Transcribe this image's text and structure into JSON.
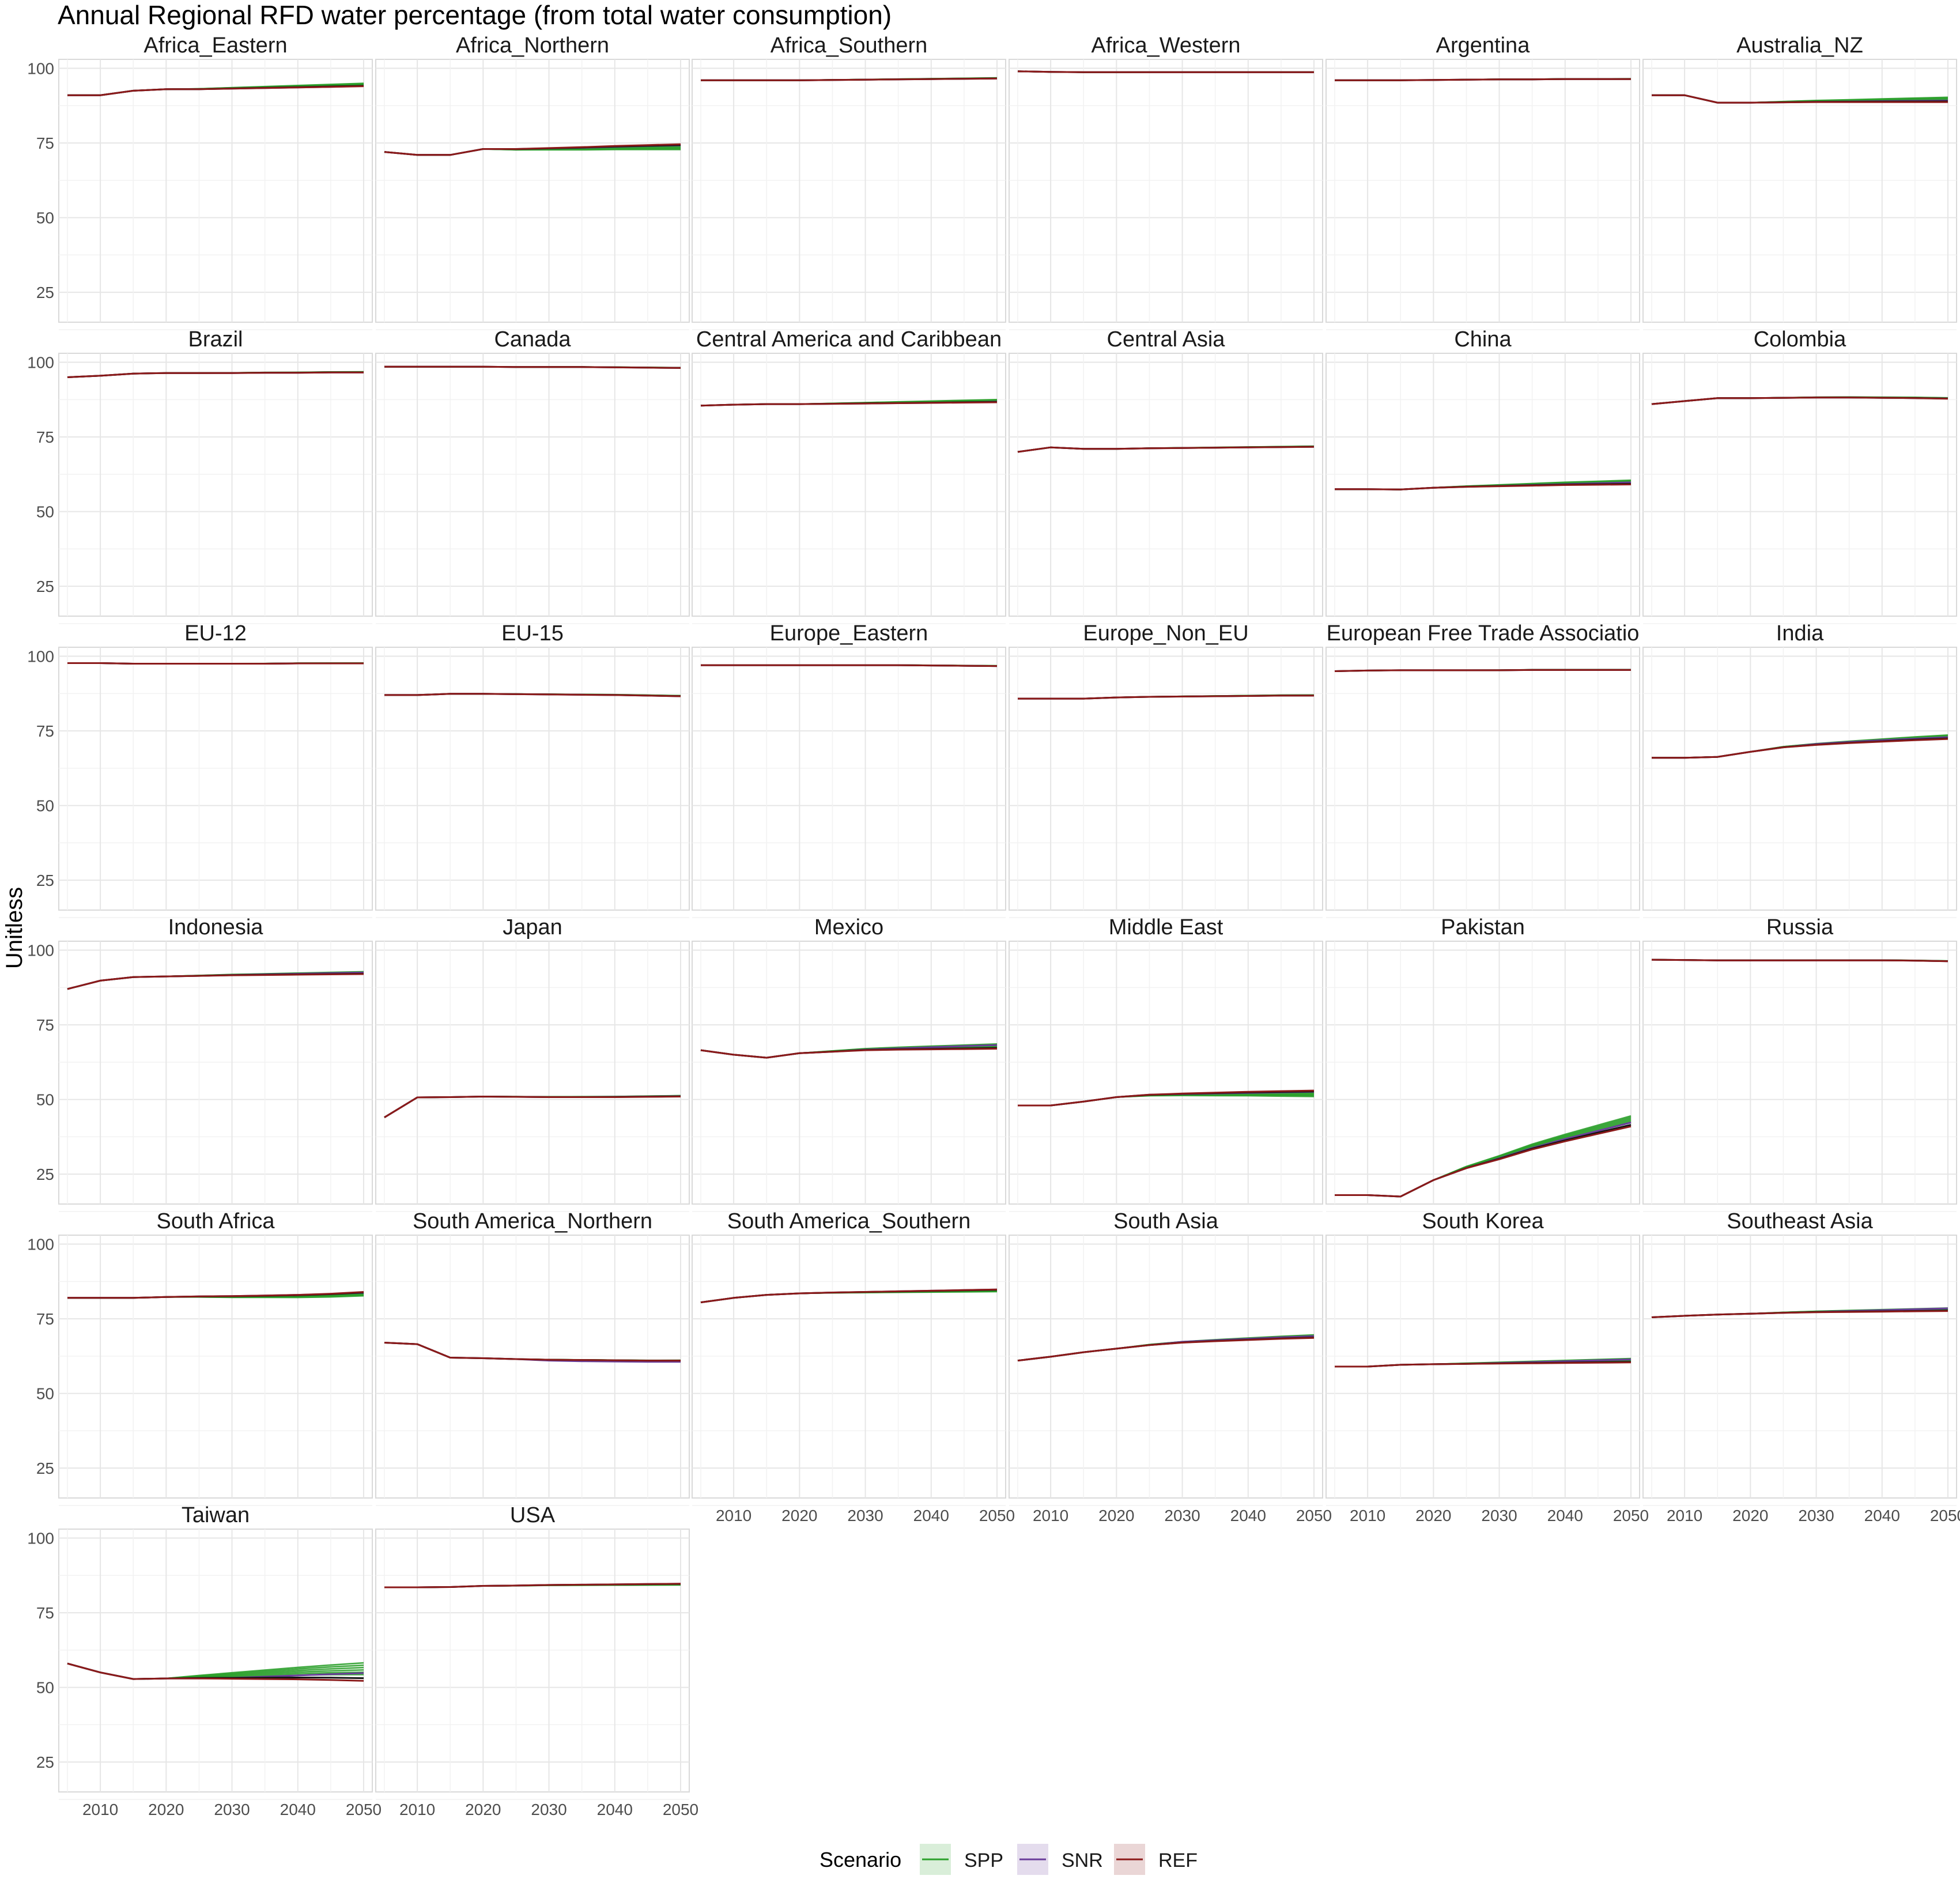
{
  "chart_data": {
    "type": "line",
    "title": "Annual Regional RFD water percentage (from total water consumption)",
    "xlabel": "",
    "ylabel": "Unitless",
    "x_ticks": [
      2010,
      2020,
      2030,
      2040,
      2050
    ],
    "y_ticks": [
      25,
      50,
      75,
      100
    ],
    "xlim": [
      2005,
      2050
    ],
    "ylim": [
      15,
      103
    ],
    "grid": true,
    "legend": {
      "title": "Scenario",
      "position": "bottom",
      "entries": [
        {
          "name": "SPP",
          "color": "#2ca02c"
        },
        {
          "name": "SNR",
          "color": "#6a3d9a"
        },
        {
          "name": "REF",
          "color": "#8b1a1a"
        }
      ]
    },
    "x": [
      2005,
      2010,
      2015,
      2020,
      2025,
      2030,
      2035,
      2040,
      2045,
      2050
    ],
    "panels": [
      {
        "name": "Africa_Eastern",
        "ref": [
          91,
          91,
          92.5,
          93,
          93,
          93.2,
          93.4,
          93.6,
          93.8,
          94
        ],
        "spp_spread": 1.0,
        "snr": [
          93.2,
          93.4,
          93.6,
          93.8,
          94.1
        ]
      },
      {
        "name": "Africa_Northern",
        "ref": [
          72,
          71,
          71,
          73,
          73,
          73.3,
          73.6,
          74,
          74.3,
          74.6
        ],
        "spp_spread": -1.8,
        "snr": [
          73.2,
          73.4,
          73.7,
          74,
          74.2
        ]
      },
      {
        "name": "Africa_Southern",
        "ref": [
          96,
          96,
          96,
          96,
          96.1,
          96.2,
          96.3,
          96.4,
          96.5,
          96.6
        ],
        "spp_spread": 0.2,
        "snr": [
          96.2,
          96.3,
          96.4,
          96.5,
          96.6
        ]
      },
      {
        "name": "Africa_Western",
        "ref": [
          99,
          98.8,
          98.7,
          98.7,
          98.7,
          98.7,
          98.7,
          98.7,
          98.7,
          98.7
        ],
        "spp_spread": 0.1,
        "snr": [
          98.7,
          98.7,
          98.7,
          98.7,
          98.7
        ]
      },
      {
        "name": "Argentina",
        "ref": [
          96,
          96,
          96,
          96.1,
          96.2,
          96.3,
          96.3,
          96.4,
          96.4,
          96.4
        ],
        "spp_spread": 0.1,
        "snr": [
          96.3,
          96.3,
          96.4,
          96.4,
          96.4
        ]
      },
      {
        "name": "Australia_NZ",
        "ref": [
          91,
          91,
          88.5,
          88.5,
          88.6,
          88.7,
          88.7,
          88.7,
          88.7,
          88.7
        ],
        "spp_spread": 1.6,
        "snr": [
          88.8,
          88.9,
          89,
          89.1,
          89.2
        ]
      },
      {
        "name": "Brazil",
        "ref": [
          95,
          95.5,
          96.2,
          96.4,
          96.4,
          96.4,
          96.5,
          96.5,
          96.6,
          96.6
        ],
        "spp_spread": 0.2,
        "snr": [
          96.4,
          96.5,
          96.5,
          96.6,
          96.6
        ]
      },
      {
        "name": "Canada",
        "ref": [
          98.5,
          98.5,
          98.5,
          98.5,
          98.4,
          98.4,
          98.4,
          98.3,
          98.2,
          98.1
        ],
        "spp_spread": 0.1,
        "snr": [
          98.4,
          98.4,
          98.3,
          98.2,
          98.1
        ]
      },
      {
        "name": "Central America and Caribbean",
        "ref": [
          85.5,
          85.8,
          86,
          86,
          86.1,
          86.2,
          86.3,
          86.4,
          86.5,
          86.6
        ],
        "spp_spread": 0.9,
        "snr": [
          86.2,
          86.3,
          86.4,
          86.6,
          86.8
        ]
      },
      {
        "name": "Central Asia",
        "ref": [
          70,
          71.5,
          71,
          71,
          71.2,
          71.3,
          71.4,
          71.5,
          71.6,
          71.7
        ],
        "spp_spread": 0.2,
        "snr": [
          71.3,
          71.4,
          71.5,
          71.6,
          71.7
        ]
      },
      {
        "name": "China",
        "ref": [
          57.5,
          57.5,
          57.4,
          58,
          58.3,
          58.5,
          58.7,
          58.9,
          59,
          59.1
        ],
        "spp_spread": 1.4,
        "snr": [
          58.6,
          58.9,
          59.2,
          59.5,
          59.8
        ]
      },
      {
        "name": "Colombia",
        "ref": [
          86,
          87,
          88,
          88,
          88.1,
          88.2,
          88.2,
          88.1,
          88,
          87.8
        ],
        "spp_spread": 0.3,
        "snr": [
          88.2,
          88.2,
          88.1,
          88,
          87.9
        ]
      },
      {
        "name": "EU-12",
        "ref": [
          97.7,
          97.7,
          97.5,
          97.5,
          97.5,
          97.5,
          97.5,
          97.6,
          97.6,
          97.6
        ],
        "spp_spread": 0.1,
        "snr": [
          97.5,
          97.5,
          97.6,
          97.6,
          97.6
        ]
      },
      {
        "name": "EU-15",
        "ref": [
          87,
          87,
          87.4,
          87.4,
          87.3,
          87.2,
          87.1,
          87,
          86.8,
          86.6
        ],
        "spp_spread": 0.2,
        "snr": [
          87.2,
          87.1,
          87,
          86.8,
          86.6
        ]
      },
      {
        "name": "Europe_Eastern",
        "ref": [
          97,
          97,
          97,
          97,
          97,
          97,
          97,
          96.9,
          96.8,
          96.7
        ],
        "spp_spread": 0.1,
        "snr": [
          97,
          97,
          96.9,
          96.8,
          96.7
        ]
      },
      {
        "name": "Europe_Non_EU",
        "ref": [
          85.8,
          85.8,
          85.8,
          86.2,
          86.4,
          86.5,
          86.6,
          86.7,
          86.8,
          86.8
        ],
        "spp_spread": 0.2,
        "snr": [
          86.5,
          86.6,
          86.7,
          86.8,
          86.8
        ]
      },
      {
        "name": "European Free Trade Associatio",
        "ref": [
          95,
          95.2,
          95.3,
          95.3,
          95.3,
          95.3,
          95.4,
          95.4,
          95.4,
          95.4
        ],
        "spp_spread": 0.1,
        "snr": [
          95.3,
          95.4,
          95.4,
          95.4,
          95.4
        ]
      },
      {
        "name": "India",
        "ref": [
          66,
          66,
          66.3,
          68,
          69.5,
          70.3,
          70.9,
          71.4,
          71.9,
          72.3
        ],
        "spp_spread": 1.3,
        "snr": [
          70.6,
          71.3,
          71.9,
          72.4,
          72.9
        ]
      },
      {
        "name": "Indonesia",
        "ref": [
          87,
          89.8,
          91,
          91.2,
          91.4,
          91.6,
          91.7,
          91.8,
          91.9,
          92
        ],
        "spp_spread": 0.8,
        "snr": [
          91.7,
          91.9,
          92.1,
          92.3,
          92.5
        ]
      },
      {
        "name": "Japan",
        "ref": [
          44,
          50.7,
          50.8,
          51,
          50.9,
          50.8,
          50.8,
          50.8,
          50.9,
          51
        ],
        "spp_spread": 0.3,
        "snr": [
          50.8,
          50.8,
          50.9,
          51,
          51.1
        ]
      },
      {
        "name": "Mexico",
        "ref": [
          66.5,
          65,
          64,
          65.5,
          66,
          66.5,
          66.7,
          66.8,
          66.9,
          67
        ],
        "spp_spread": 1.6,
        "snr": [
          66.7,
          67.1,
          67.5,
          67.9,
          68.2
        ]
      },
      {
        "name": "Middle East",
        "ref": [
          48,
          48,
          49.3,
          50.8,
          51.6,
          52,
          52.3,
          52.6,
          52.8,
          53
        ],
        "spp_spread": -2.0,
        "snr": [
          51.8,
          52,
          52.2,
          52.4,
          52.6
        ]
      },
      {
        "name": "Pakistan",
        "ref": [
          18,
          18,
          17.5,
          23,
          27,
          30,
          33.3,
          36,
          38.5,
          41
        ],
        "spp_spread": 3.5,
        "snr": [
          30.3,
          33.8,
          36.8,
          39.5,
          42.3
        ]
      },
      {
        "name": "Russia",
        "ref": [
          96.8,
          96.7,
          96.6,
          96.6,
          96.6,
          96.6,
          96.6,
          96.6,
          96.5,
          96.3
        ],
        "spp_spread": 0.1,
        "snr": [
          96.6,
          96.6,
          96.6,
          96.5,
          96.3
        ]
      },
      {
        "name": "South Africa",
        "ref": [
          82,
          82,
          82,
          82.3,
          82.5,
          82.6,
          82.8,
          83,
          83.4,
          84
        ],
        "spp_spread": -1.3,
        "snr": [
          82.6,
          82.8,
          83,
          83.3,
          83.7
        ]
      },
      {
        "name": "South America_Northern",
        "ref": [
          67,
          66.5,
          62,
          61.8,
          61.5,
          61.3,
          61.2,
          61.1,
          61,
          61
        ],
        "spp_spread": 0.1,
        "snr": [
          61,
          60.8,
          60.7,
          60.6,
          60.6
        ]
      },
      {
        "name": "South America_Southern",
        "ref": [
          80.5,
          82,
          83,
          83.5,
          83.8,
          84,
          84.2,
          84.4,
          84.6,
          84.8
        ],
        "spp_spread": -0.7,
        "snr": [
          84,
          84.2,
          84.4,
          84.6,
          84.8
        ]
      },
      {
        "name": "South Asia",
        "ref": [
          61,
          62.3,
          63.8,
          65,
          66.2,
          67,
          67.5,
          67.9,
          68.3,
          68.6
        ],
        "spp_spread": 1.0,
        "snr": [
          67.3,
          67.8,
          68.3,
          68.8,
          69.2
        ]
      },
      {
        "name": "South Korea",
        "ref": [
          59,
          59,
          59.6,
          59.8,
          59.9,
          60,
          60.1,
          60.2,
          60.3,
          60.4
        ],
        "spp_spread": 1.3,
        "snr": [
          60.2,
          60.5,
          60.8,
          61.1,
          61.4
        ]
      },
      {
        "name": "Southeast Asia",
        "ref": [
          75.5,
          76,
          76.4,
          76.7,
          77,
          77.2,
          77.3,
          77.4,
          77.5,
          77.6
        ],
        "spp_spread": 1.0,
        "snr": [
          77.3,
          77.6,
          77.9,
          78.2,
          78.5
        ]
      },
      {
        "name": "Taiwan",
        "ref": [
          58,
          55,
          52.8,
          53,
          53,
          52.9,
          52.8,
          52.7,
          52.5,
          52.2
        ],
        "spp_spread": 6.0,
        "snr": [
          53.2,
          53.6,
          54,
          54.4,
          54.8
        ]
      },
      {
        "name": "USA",
        "ref": [
          83.5,
          83.5,
          83.6,
          84,
          84.1,
          84.3,
          84.4,
          84.5,
          84.6,
          84.7
        ],
        "spp_spread": -0.4,
        "snr": [
          84.3,
          84.4,
          84.5,
          84.6,
          84.7
        ]
      }
    ]
  }
}
